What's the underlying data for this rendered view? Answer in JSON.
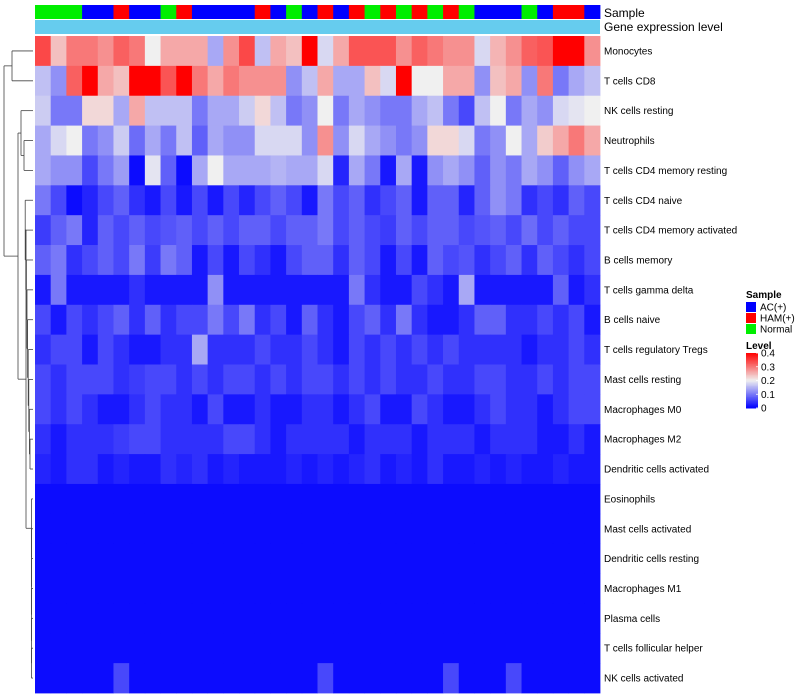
{
  "chart_data": {
    "type": "heatmap",
    "title": "",
    "annotation_tracks": [
      {
        "label": "Sample"
      },
      {
        "label": "Gene expression level"
      }
    ],
    "sample_groups": [
      "N",
      "N",
      "N",
      "A",
      "A",
      "H",
      "A",
      "A",
      "N",
      "H",
      "A",
      "A",
      "A",
      "A",
      "H",
      "A",
      "N",
      "A",
      "H",
      "A",
      "H",
      "N",
      "H",
      "N",
      "H",
      "N",
      "H",
      "N",
      "A",
      "A",
      "A",
      "N",
      "A",
      "H",
      "H",
      "A"
    ],
    "rows": [
      "Monocytes",
      "T cells CD8",
      "NK cells resting",
      "Neutrophils",
      "T cells CD4 memory resting",
      "T cells CD4 naive",
      "T cells CD4 memory activated",
      "B cells memory",
      "T cells gamma delta",
      "B cells naive",
      "T cells regulatory  Tregs",
      "Mast cells resting",
      "Macrophages M0",
      "Macrophages M2",
      "Dendritic cells activated",
      "Eosinophils",
      "Mast cells activated",
      "Dendritic cells resting",
      "Macrophages M1",
      "Plasma cells",
      "T cells follicular helper",
      "NK cells activated"
    ],
    "values": [
      [
        0.34,
        0.24,
        0.3,
        0.3,
        0.28,
        0.32,
        0.3,
        0.2,
        0.26,
        0.26,
        0.26,
        0.14,
        0.28,
        0.34,
        0.16,
        0.26,
        0.24,
        0.4,
        0.18,
        0.26,
        0.33,
        0.33,
        0.33,
        0.28,
        0.32,
        0.3,
        0.28,
        0.28,
        0.18,
        0.25,
        0.28,
        0.32,
        0.33,
        0.4,
        0.4,
        0.28
      ],
      [
        0.16,
        0.12,
        0.32,
        0.4,
        0.26,
        0.24,
        0.4,
        0.4,
        0.33,
        0.4,
        0.3,
        0.26,
        0.3,
        0.28,
        0.28,
        0.28,
        0.12,
        0.16,
        0.26,
        0.14,
        0.14,
        0.24,
        0.18,
        0.4,
        0.2,
        0.2,
        0.26,
        0.26,
        0.12,
        0.24,
        0.26,
        0.12,
        0.3,
        0.1,
        0.14,
        0.16
      ],
      [
        0.17,
        0.1,
        0.1,
        0.22,
        0.22,
        0.14,
        0.26,
        0.16,
        0.16,
        0.16,
        0.1,
        0.14,
        0.14,
        0.17,
        0.22,
        0.16,
        0.1,
        0.12,
        0.2,
        0.1,
        0.14,
        0.12,
        0.1,
        0.1,
        0.14,
        0.16,
        0.1,
        0.06,
        0.16,
        0.2,
        0.1,
        0.14,
        0.12,
        0.18,
        0.19,
        0.2
      ],
      [
        0.14,
        0.18,
        0.2,
        0.1,
        0.12,
        0.17,
        0.09,
        0.14,
        0.1,
        0.16,
        0.08,
        0.14,
        0.12,
        0.12,
        0.18,
        0.18,
        0.18,
        0.12,
        0.28,
        0.12,
        0.18,
        0.14,
        0.12,
        0.1,
        0.12,
        0.22,
        0.22,
        0.18,
        0.1,
        0.12,
        0.2,
        0.14,
        0.23,
        0.26,
        0.3,
        0.26
      ],
      [
        0.14,
        0.12,
        0.12,
        0.06,
        0.1,
        0.13,
        0.01,
        0.19,
        0.08,
        0.01,
        0.14,
        0.2,
        0.14,
        0.14,
        0.14,
        0.15,
        0.14,
        0.14,
        0.18,
        0.03,
        0.14,
        0.1,
        0.02,
        0.14,
        0.02,
        0.12,
        0.14,
        0.12,
        0.08,
        0.12,
        0.1,
        0.14,
        0.12,
        0.08,
        0.12,
        0.14
      ],
      [
        0.1,
        0.06,
        0.01,
        0.03,
        0.06,
        0.08,
        0.04,
        0.02,
        0.06,
        0.02,
        0.06,
        0.02,
        0.06,
        0.03,
        0.06,
        0.08,
        0.06,
        0.02,
        0.1,
        0.06,
        0.08,
        0.04,
        0.06,
        0.08,
        0.02,
        0.08,
        0.08,
        0.03,
        0.08,
        0.12,
        0.1,
        0.04,
        0.06,
        0.04,
        0.08,
        0.06
      ],
      [
        0.05,
        0.08,
        0.1,
        0.03,
        0.08,
        0.06,
        0.08,
        0.06,
        0.07,
        0.08,
        0.06,
        0.08,
        0.06,
        0.08,
        0.08,
        0.06,
        0.08,
        0.08,
        0.1,
        0.06,
        0.08,
        0.06,
        0.05,
        0.08,
        0.06,
        0.08,
        0.08,
        0.06,
        0.07,
        0.08,
        0.06,
        0.09,
        0.06,
        0.08,
        0.06,
        0.06
      ],
      [
        0.08,
        0.1,
        0.04,
        0.06,
        0.08,
        0.06,
        0.1,
        0.05,
        0.1,
        0.08,
        0.02,
        0.06,
        0.02,
        0.06,
        0.04,
        0.02,
        0.06,
        0.08,
        0.08,
        0.04,
        0.08,
        0.06,
        0.02,
        0.06,
        0.02,
        0.08,
        0.06,
        0.07,
        0.04,
        0.06,
        0.08,
        0.04,
        0.08,
        0.06,
        0.04,
        0.06
      ],
      [
        0.02,
        0.1,
        0.02,
        0.02,
        0.02,
        0.02,
        0.04,
        0.02,
        0.02,
        0.02,
        0.02,
        0.12,
        0.02,
        0.02,
        0.02,
        0.02,
        0.02,
        0.02,
        0.02,
        0.02,
        0.1,
        0.04,
        0.02,
        0.02,
        0.06,
        0.04,
        0.02,
        0.14,
        0.02,
        0.02,
        0.02,
        0.02,
        0.02,
        0.08,
        0.02,
        0.04
      ],
      [
        0.06,
        0.02,
        0.06,
        0.04,
        0.06,
        0.08,
        0.04,
        0.08,
        0.04,
        0.06,
        0.06,
        0.1,
        0.06,
        0.1,
        0.04,
        0.06,
        0.02,
        0.08,
        0.04,
        0.02,
        0.06,
        0.08,
        0.04,
        0.1,
        0.04,
        0.02,
        0.02,
        0.04,
        0.08,
        0.08,
        0.04,
        0.04,
        0.06,
        0.04,
        0.06,
        0.02
      ],
      [
        0.04,
        0.06,
        0.06,
        0.02,
        0.06,
        0.04,
        0.02,
        0.02,
        0.04,
        0.04,
        0.14,
        0.04,
        0.04,
        0.04,
        0.06,
        0.04,
        0.04,
        0.06,
        0.04,
        0.02,
        0.06,
        0.04,
        0.06,
        0.04,
        0.06,
        0.04,
        0.06,
        0.04,
        0.04,
        0.04,
        0.04,
        0.02,
        0.04,
        0.04,
        0.06,
        0.04
      ],
      [
        0.06,
        0.04,
        0.06,
        0.06,
        0.06,
        0.04,
        0.05,
        0.06,
        0.06,
        0.04,
        0.06,
        0.04,
        0.06,
        0.06,
        0.04,
        0.06,
        0.04,
        0.06,
        0.06,
        0.04,
        0.06,
        0.04,
        0.06,
        0.04,
        0.04,
        0.06,
        0.04,
        0.04,
        0.06,
        0.06,
        0.04,
        0.04,
        0.06,
        0.04,
        0.06,
        0.06
      ],
      [
        0.06,
        0.04,
        0.06,
        0.04,
        0.02,
        0.02,
        0.04,
        0.06,
        0.04,
        0.04,
        0.02,
        0.06,
        0.02,
        0.02,
        0.04,
        0.02,
        0.02,
        0.04,
        0.04,
        0.02,
        0.04,
        0.06,
        0.02,
        0.02,
        0.06,
        0.04,
        0.02,
        0.02,
        0.04,
        0.06,
        0.04,
        0.04,
        0.02,
        0.04,
        0.06,
        0.06
      ],
      [
        0.04,
        0.02,
        0.04,
        0.04,
        0.04,
        0.05,
        0.06,
        0.06,
        0.04,
        0.04,
        0.04,
        0.04,
        0.06,
        0.06,
        0.04,
        0.02,
        0.04,
        0.04,
        0.04,
        0.04,
        0.02,
        0.04,
        0.04,
        0.04,
        0.02,
        0.04,
        0.04,
        0.04,
        0.02,
        0.04,
        0.04,
        0.04,
        0.02,
        0.02,
        0.04,
        0.02
      ],
      [
        0.03,
        0.02,
        0.04,
        0.04,
        0.02,
        0.03,
        0.02,
        0.02,
        0.04,
        0.03,
        0.04,
        0.02,
        0.03,
        0.02,
        0.02,
        0.02,
        0.03,
        0.02,
        0.03,
        0.02,
        0.03,
        0.04,
        0.02,
        0.03,
        0.02,
        0.04,
        0.02,
        0.02,
        0.03,
        0.02,
        0.03,
        0.02,
        0.02,
        0.03,
        0.02,
        0.02
      ],
      [
        0.01,
        0.01,
        0.01,
        0.01,
        0.01,
        0.01,
        0.01,
        0.01,
        0.01,
        0.01,
        0.01,
        0.01,
        0.01,
        0.01,
        0.01,
        0.01,
        0.01,
        0.01,
        0.01,
        0.01,
        0.01,
        0.01,
        0.01,
        0.01,
        0.01,
        0.01,
        0.01,
        0.01,
        0.01,
        0.01,
        0.01,
        0.01,
        0.01,
        0.01,
        0.01,
        0.01
      ],
      [
        0.01,
        0.01,
        0.01,
        0.01,
        0.01,
        0.01,
        0.01,
        0.01,
        0.01,
        0.01,
        0.01,
        0.01,
        0.01,
        0.01,
        0.01,
        0.01,
        0.01,
        0.01,
        0.01,
        0.01,
        0.01,
        0.01,
        0.01,
        0.01,
        0.01,
        0.01,
        0.01,
        0.01,
        0.01,
        0.01,
        0.01,
        0.01,
        0.01,
        0.01,
        0.01,
        0.01
      ],
      [
        0.01,
        0.01,
        0.01,
        0.01,
        0.01,
        0.01,
        0.01,
        0.01,
        0.01,
        0.01,
        0.01,
        0.01,
        0.01,
        0.01,
        0.01,
        0.01,
        0.01,
        0.01,
        0.01,
        0.01,
        0.01,
        0.01,
        0.01,
        0.01,
        0.01,
        0.01,
        0.01,
        0.01,
        0.01,
        0.01,
        0.01,
        0.01,
        0.01,
        0.01,
        0.01,
        0.01
      ],
      [
        0.01,
        0.01,
        0.01,
        0.01,
        0.01,
        0.01,
        0.01,
        0.01,
        0.01,
        0.01,
        0.01,
        0.01,
        0.01,
        0.01,
        0.01,
        0.01,
        0.01,
        0.01,
        0.01,
        0.01,
        0.01,
        0.01,
        0.01,
        0.01,
        0.01,
        0.01,
        0.01,
        0.01,
        0.01,
        0.01,
        0.01,
        0.01,
        0.01,
        0.01,
        0.01,
        0.01
      ],
      [
        0.01,
        0.01,
        0.01,
        0.01,
        0.01,
        0.01,
        0.01,
        0.01,
        0.01,
        0.01,
        0.01,
        0.01,
        0.01,
        0.01,
        0.01,
        0.01,
        0.01,
        0.01,
        0.01,
        0.01,
        0.01,
        0.01,
        0.01,
        0.01,
        0.01,
        0.01,
        0.01,
        0.01,
        0.01,
        0.01,
        0.01,
        0.01,
        0.01,
        0.01,
        0.01,
        0.01
      ],
      [
        0.01,
        0.01,
        0.01,
        0.01,
        0.01,
        0.01,
        0.01,
        0.01,
        0.01,
        0.01,
        0.01,
        0.01,
        0.01,
        0.01,
        0.01,
        0.01,
        0.01,
        0.01,
        0.01,
        0.01,
        0.01,
        0.01,
        0.01,
        0.01,
        0.01,
        0.01,
        0.01,
        0.01,
        0.01,
        0.01,
        0.01,
        0.01,
        0.01,
        0.01,
        0.01,
        0.01
      ],
      [
        0.01,
        0.01,
        0.01,
        0.01,
        0.01,
        0.06,
        0.01,
        0.01,
        0.01,
        0.01,
        0.01,
        0.01,
        0.01,
        0.01,
        0.01,
        0.01,
        0.01,
        0.01,
        0.06,
        0.01,
        0.01,
        0.01,
        0.01,
        0.01,
        0.01,
        0.01,
        0.06,
        0.01,
        0.01,
        0.01,
        0.06,
        0.01,
        0.01,
        0.01,
        0.01,
        0.01
      ]
    ],
    "color_range": [
      0,
      0.4
    ],
    "color_scale": {
      "low": "#0000ff",
      "mid": "#f0f0f0",
      "high": "#ff0000"
    },
    "legends": {
      "sample": {
        "title": "Sample",
        "items": [
          {
            "key": "A",
            "label": "AC(+)",
            "color": "#0000ff"
          },
          {
            "key": "H",
            "label": "HAM(+)",
            "color": "#ff0000"
          },
          {
            "key": "N",
            "label": "Normal",
            "color": "#00ee00"
          }
        ]
      },
      "level": {
        "title": "Level",
        "ticks": [
          {
            "value": 0.4,
            "label": "0.4"
          },
          {
            "value": 0.3,
            "label": "0.3"
          },
          {
            "value": 0.2,
            "label": "0.2"
          },
          {
            "value": 0.1,
            "label": "0.1"
          },
          {
            "value": 0,
            "label": "0"
          }
        ]
      }
    },
    "expression_track_color": "#66ccee",
    "dendrogram": "row clustering (left side)"
  }
}
